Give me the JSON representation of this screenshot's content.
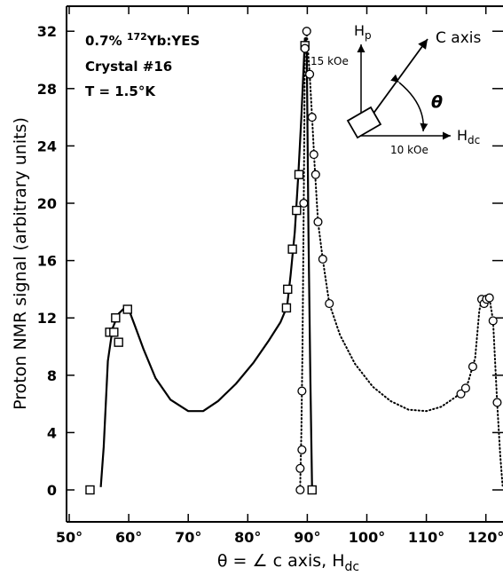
{
  "chart_data": {
    "type": "scatter",
    "xlabel": "θ = ∠ c axis, H",
    "xlabel_sub": "dc",
    "ylabel": "Proton NMR signal (arbitrary units)",
    "xlim": [
      50,
      123
    ],
    "ylim": [
      -1.5,
      34
    ],
    "xticks": [
      50,
      60,
      70,
      80,
      90,
      100,
      110,
      120
    ],
    "xtick_labels": [
      "50°",
      "60°",
      "70°",
      "80°",
      "90°",
      "100°",
      "110°",
      "120°"
    ],
    "yticks": [
      0,
      4,
      8,
      12,
      16,
      20,
      24,
      28,
      32
    ],
    "ytick_labels": [
      "0",
      "4",
      "8",
      "12",
      "16",
      "20",
      "24",
      "28",
      "32"
    ],
    "grid": false,
    "annotation": {
      "line1_pre": "0.7% ",
      "line1_sup": "172",
      "line1_post": "Yb:YES",
      "line2": "Crystal #16",
      "line3": "T = 1.5°K"
    },
    "inset": {
      "hp_label": "H",
      "hp_sub": "p",
      "hdc_label": "H",
      "hdc_sub": "dc",
      "c_axis_label": "C axis",
      "theta_label": "θ",
      "field_15": "15 kOe",
      "field_10": "10 kOe"
    },
    "series": [
      {
        "marker": "square",
        "points": [
          [
            53.5,
            0
          ],
          [
            56.8,
            11
          ],
          [
            57.5,
            11
          ],
          [
            57.8,
            12
          ],
          [
            58.3,
            10.3
          ],
          [
            59.8,
            12.6
          ],
          [
            86.5,
            12.7
          ],
          [
            86.7,
            14
          ],
          [
            87.5,
            16.8
          ],
          [
            88.2,
            19.5
          ],
          [
            88.6,
            22
          ],
          [
            89.6,
            31
          ],
          [
            90.8,
            0
          ]
        ]
      },
      {
        "marker": "circle",
        "points": [
          [
            88.8,
            0
          ],
          [
            88.8,
            1.5
          ],
          [
            89.1,
            2.8
          ],
          [
            89.1,
            6.9
          ],
          [
            89.4,
            20
          ],
          [
            89.6,
            30.8
          ],
          [
            89.9,
            32
          ],
          [
            90.4,
            29
          ],
          [
            90.8,
            26
          ],
          [
            91.1,
            23.4
          ],
          [
            91.4,
            22
          ],
          [
            91.8,
            18.7
          ],
          [
            92.6,
            16.1
          ],
          [
            93.7,
            13
          ],
          [
            115.8,
            6.7
          ],
          [
            116.6,
            7.1
          ],
          [
            117.8,
            8.6
          ],
          [
            119.3,
            13.3
          ],
          [
            119.7,
            13
          ],
          [
            120.1,
            13.3
          ],
          [
            120.6,
            13.4
          ],
          [
            121.2,
            11.8
          ],
          [
            121.9,
            6.1
          ]
        ]
      }
    ],
    "curves": [
      {
        "style": "solid",
        "points": [
          [
            55.3,
            0.2
          ],
          [
            55.8,
            3
          ],
          [
            56.5,
            9
          ],
          [
            57.3,
            11.3
          ],
          [
            58.3,
            12.3
          ],
          [
            59.3,
            12.7
          ],
          [
            60,
            12.6
          ],
          [
            61,
            11.5
          ],
          [
            62.5,
            9.8
          ],
          [
            64.5,
            7.8
          ],
          [
            67,
            6.3
          ],
          [
            70,
            5.5
          ],
          [
            72.5,
            5.5
          ],
          [
            75,
            6.2
          ],
          [
            78,
            7.4
          ],
          [
            81,
            8.9
          ],
          [
            83.5,
            10.4
          ],
          [
            85.5,
            11.7
          ],
          [
            86.6,
            12.8
          ],
          [
            87.2,
            15
          ],
          [
            87.9,
            18
          ],
          [
            88.5,
            22
          ],
          [
            89,
            26
          ],
          [
            89.6,
            31.5
          ],
          [
            89.9,
            31.2
          ],
          [
            90.2,
            18
          ],
          [
            90.5,
            8
          ],
          [
            90.8,
            0
          ]
        ]
      },
      {
        "style": "dotted",
        "points": [
          [
            88.8,
            0
          ],
          [
            89.0,
            4
          ],
          [
            89.2,
            10
          ],
          [
            89.4,
            20
          ],
          [
            89.6,
            30.8
          ],
          [
            89.9,
            32
          ],
          [
            90.4,
            29
          ],
          [
            90.8,
            26
          ],
          [
            91.2,
            22.8
          ],
          [
            91.8,
            18.7
          ],
          [
            92.6,
            16.1
          ],
          [
            93.7,
            13
          ],
          [
            95.5,
            10.8
          ],
          [
            98,
            8.8
          ],
          [
            101,
            7.2
          ],
          [
            104,
            6.2
          ],
          [
            107,
            5.6
          ],
          [
            110,
            5.5
          ],
          [
            112.5,
            5.8
          ],
          [
            115,
            6.5
          ],
          [
            117,
            7.5
          ],
          [
            118.2,
            9.2
          ],
          [
            118.9,
            12.5
          ],
          [
            119.3,
            13.3
          ],
          [
            120,
            13.1
          ],
          [
            120.6,
            13.4
          ],
          [
            121.2,
            11.8
          ],
          [
            121.9,
            6.1
          ],
          [
            122.4,
            2.5
          ],
          [
            122.8,
            0.3
          ]
        ]
      }
    ]
  }
}
